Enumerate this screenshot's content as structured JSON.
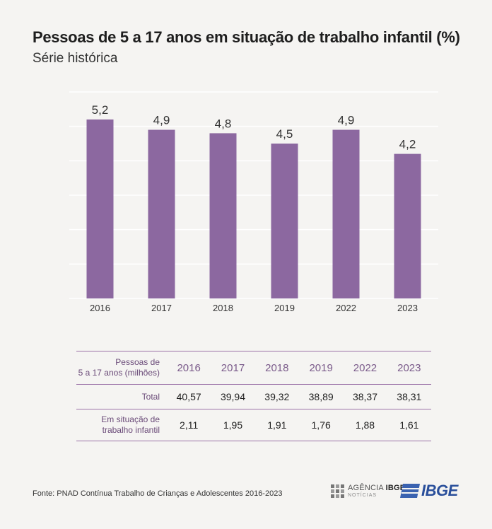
{
  "title": "Pessoas de 5 a 17 anos em situação de trabalho infantil (%)",
  "subtitle": "Série histórica",
  "chart_data": {
    "type": "bar",
    "categories": [
      "2016",
      "2017",
      "2018",
      "2019",
      "2022",
      "2023"
    ],
    "values": [
      5.2,
      4.9,
      4.8,
      4.5,
      4.9,
      4.2
    ],
    "value_labels": [
      "5,2",
      "4,9",
      "4,8",
      "4,5",
      "4,9",
      "4,2"
    ],
    "ylim": [
      0,
      6
    ],
    "grid": true,
    "bar_color": "#8c68a0",
    "grid_color": "#ffffff"
  },
  "table": {
    "header_label": [
      "Pessoas de",
      "5 a 17 anos (milhões)"
    ],
    "years": [
      "2016",
      "2017",
      "2018",
      "2019",
      "2022",
      "2023"
    ],
    "rows": [
      {
        "label": [
          "Total"
        ],
        "values": [
          "40,57",
          "39,94",
          "39,32",
          "38,89",
          "38,37",
          "38,31"
        ]
      },
      {
        "label": [
          "Em situação de",
          "trabalho infantil"
        ],
        "values": [
          "2,11",
          "1,95",
          "1,91",
          "1,76",
          "1,88",
          "1,61"
        ]
      }
    ]
  },
  "footer": {
    "source": "Fonte: PNAD Contínua Trabalho de Crianças e Adolescentes 2016-2023",
    "agencia_prefix": "AGÊNCIA",
    "agencia_bold": "IBGE",
    "agencia_sub": "NOTÍCIAS",
    "ibge": "IBGE"
  }
}
